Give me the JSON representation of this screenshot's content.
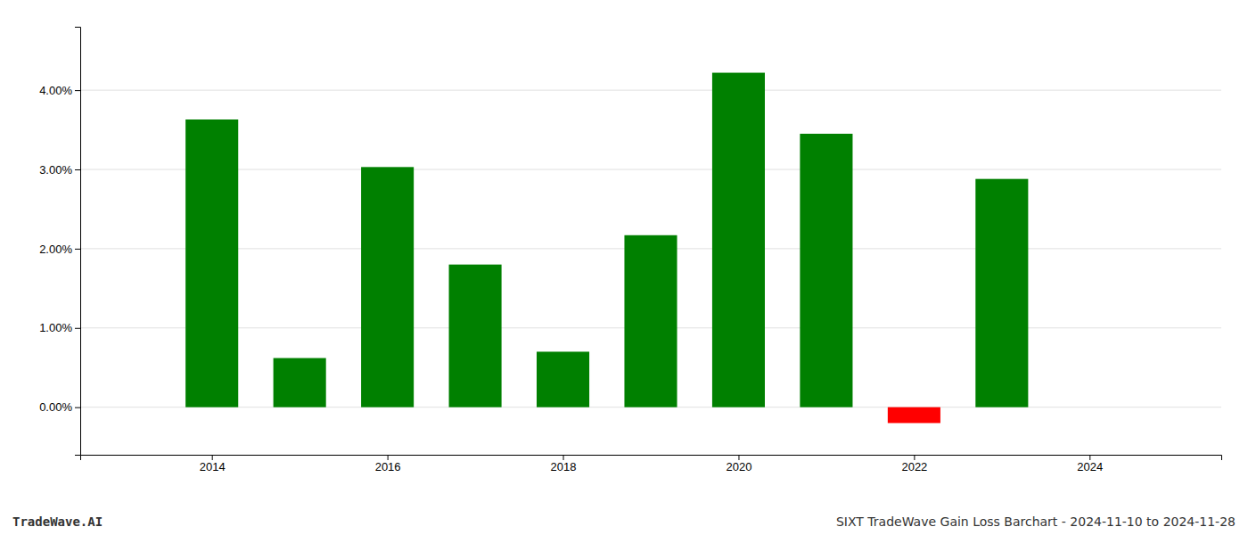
{
  "chart_data": {
    "type": "bar",
    "title": "SIXT TradeWave Gain Loss Barchart - 2024-11-10 to 2024-11-28",
    "annotations": [
      "TradeWave.AI"
    ],
    "x": [
      2014,
      2015,
      2016,
      2017,
      2018,
      2019,
      2020,
      2021,
      2022,
      2023
    ],
    "values": [
      0.0363,
      0.0062,
      0.0303,
      0.018,
      0.007,
      0.0217,
      0.0422,
      0.0345,
      -0.002,
      0.0288
    ],
    "colors": [
      "#008000",
      "#008000",
      "#008000",
      "#008000",
      "#008000",
      "#008000",
      "#008000",
      "#008000",
      "#ff0000",
      "#008000"
    ],
    "xlim": [
      2012.5,
      2025.5
    ],
    "ylim": [
      -0.006,
      0.048
    ],
    "xticks": [
      2014,
      2016,
      2018,
      2020,
      2022,
      2024
    ],
    "yticks": [
      {
        "value": 0.0,
        "label": "0.00%"
      },
      {
        "value": 0.01,
        "label": "1.00%"
      },
      {
        "value": 0.02,
        "label": "2.00%"
      },
      {
        "value": 0.03,
        "label": "3.00%"
      },
      {
        "value": 0.04,
        "label": "4.00%"
      }
    ],
    "grid": true
  }
}
